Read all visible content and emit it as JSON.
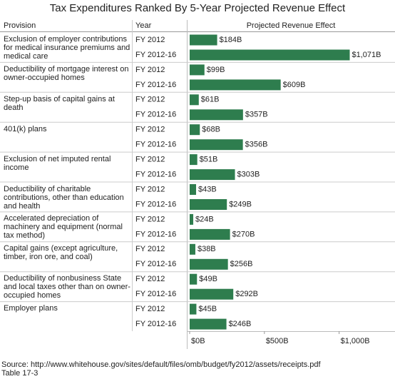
{
  "chart_data": {
    "type": "bar",
    "title": "Tax Expenditures Ranked By 5-Year Projected Revenue Effect",
    "headers": [
      "Provision",
      "Year",
      "Projected Revenue Effect"
    ],
    "categories": [
      "Exclusion of employer contributions for medical insurance premiums and medical care",
      "Deductibility of mortgage interest on owner-occupied homes",
      "Step-up basis of capital gains at death",
      "401(k) plans",
      "Exclusion of net imputed rental income",
      "Deductibility of charitable contributions, other than education and health",
      "Accelerated depreciation of machinery and equipment (normal tax method)",
      "Capital gains (except agriculture, timber, iron ore, and coal)",
      "Deductibility of nonbusiness State and local taxes other than on owner-occupied homes",
      "Employer plans"
    ],
    "series": [
      {
        "name": "FY 2012",
        "color": "#2e7d4e",
        "values": [
          184,
          99,
          61,
          68,
          51,
          43,
          24,
          38,
          49,
          45
        ],
        "value_labels": [
          "$184B",
          "$99B",
          "$61B",
          "$68B",
          "$51B",
          "$43B",
          "$24B",
          "$38B",
          "$49B",
          "$45B"
        ]
      },
      {
        "name": "FY 2012-16",
        "color": "#2e7d4e",
        "values": [
          1071,
          609,
          357,
          356,
          303,
          249,
          270,
          256,
          292,
          246
        ],
        "value_labels": [
          "$1,071B",
          "$609B",
          "$357B",
          "$356B",
          "$303B",
          "$249B",
          "$270B",
          "$256B",
          "$292B",
          "$246B"
        ]
      }
    ],
    "xlim": [
      0,
      1350
    ],
    "xticks": [
      {
        "value": 0,
        "label": "$0B"
      },
      {
        "value": 500,
        "label": "$500B"
      },
      {
        "value": 1000,
        "label": "$1,000B"
      }
    ],
    "grid": false,
    "source": "Source: http://www.whitehouse.gov/sites/default/files/omb/budget/fy2012/assets/receipts.pdf",
    "note": "Table 17-3"
  }
}
